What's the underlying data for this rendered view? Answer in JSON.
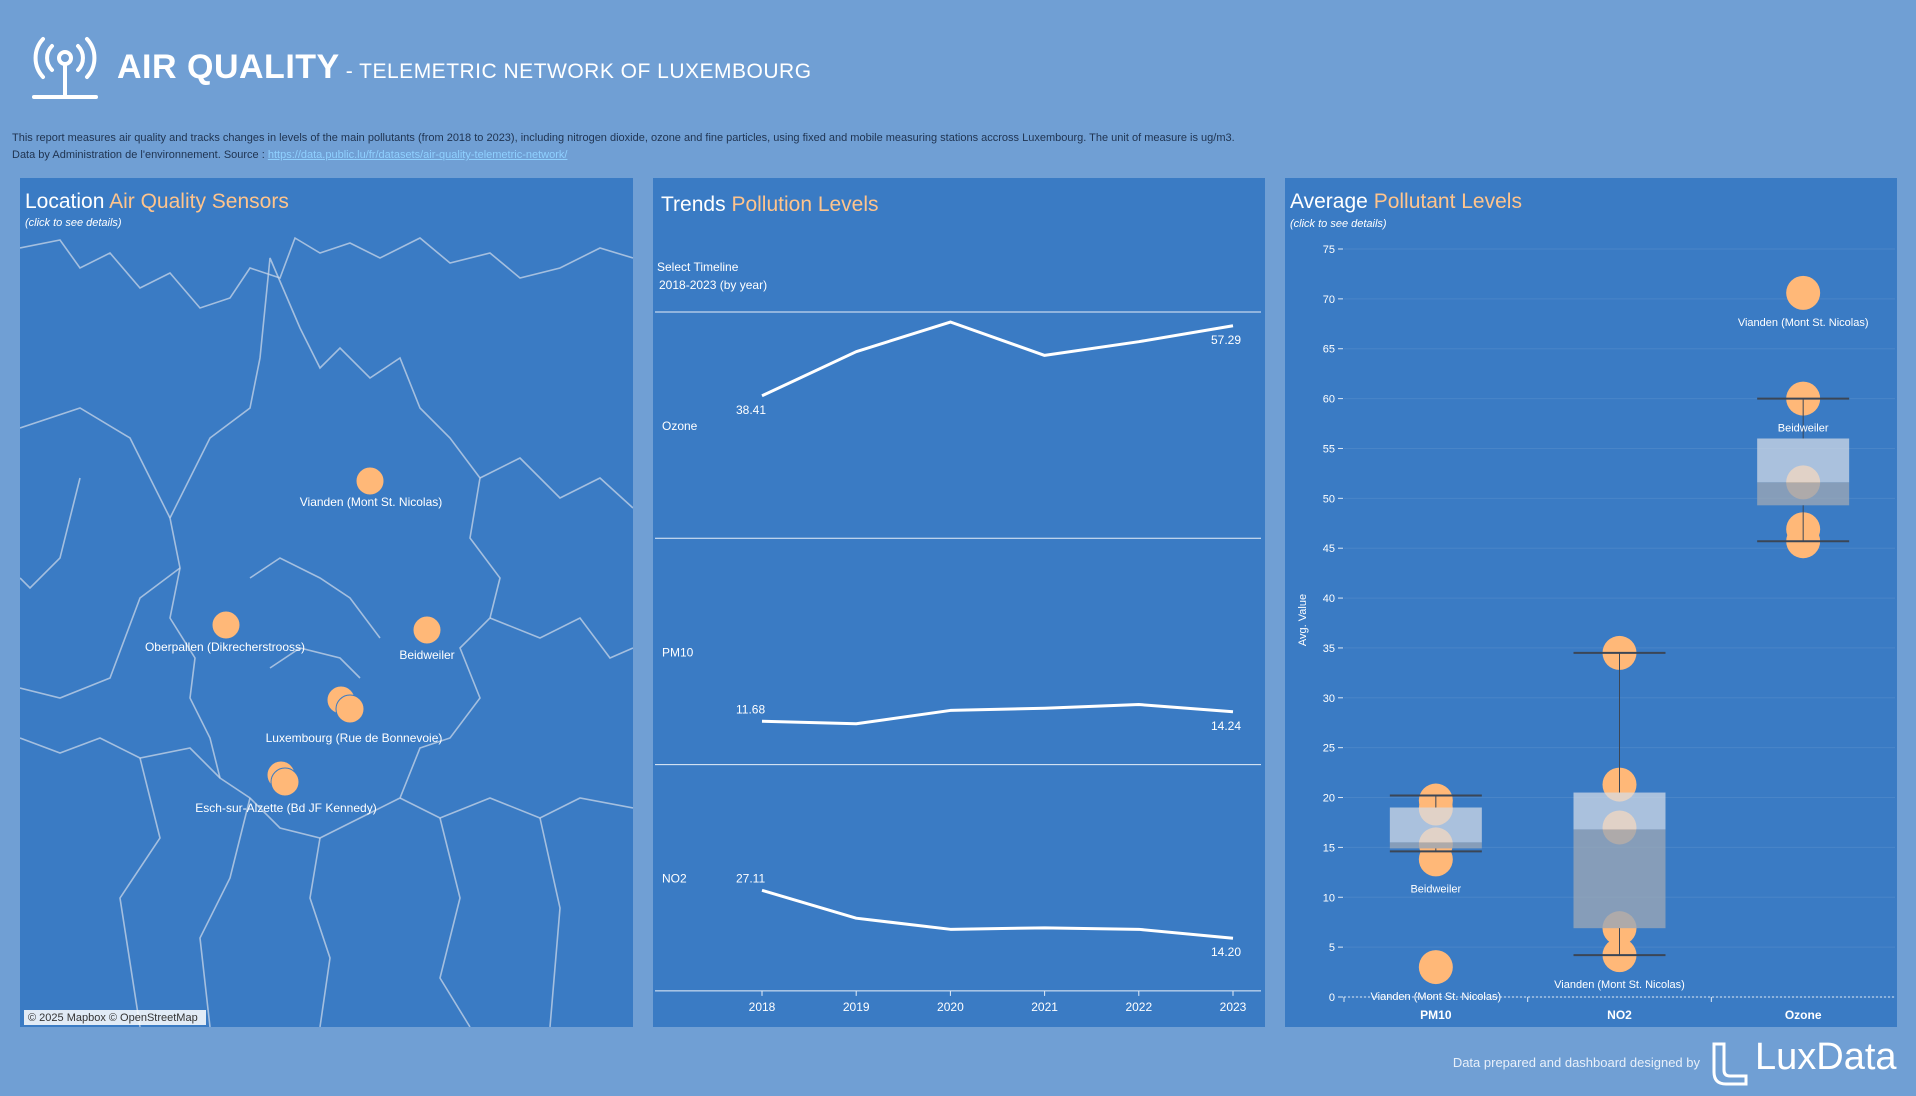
{
  "header": {
    "title": "AIR QUALITY",
    "subtitle": "- TELEMETRIC NETWORK OF LUXEMBOURG",
    "description": "This report  measures air quality and tracks changes in levels of the main pollutants (from 2018 to 2023), including nitrogen dioxide, ozone and fine particles, using fixed and mobile measuring stations accross Luxembourg. The unit of measure is ug/m3.",
    "source_prefix": "Data by Administration de l'environnement. Source :",
    "source_link": "https://data.public.lu/fr/datasets/air-quality-telemetric-network/"
  },
  "map": {
    "title": "Location",
    "title_highlight": "Air Quality Sensors",
    "note": "(click to see details)",
    "stations": [
      "Vianden (Mont St. Nicolas)",
      "Oberpallen (Dikrecherstrooss)",
      "Beidweiler",
      "Luxembourg (Rue de Bonnevoie)",
      "Esch-sur-Alzette (Bd JF Kennedy)"
    ],
    "attribution": "© 2025 Mapbox © OpenStreetMap"
  },
  "chart_data": [
    {
      "type": "line",
      "title": "Trends",
      "title_highlight": "Pollution Levels",
      "control_label": "Select Timeline",
      "control_value": "2018-2023 (by year)",
      "categories": [
        "2018",
        "2019",
        "2020",
        "2021",
        "2022",
        "2023"
      ],
      "ylim": [
        0,
        61
      ],
      "color": "#ffffff",
      "series": [
        {
          "name": "Ozone",
          "values": [
            38.41,
            50.3,
            58.3,
            49.3,
            53.0,
            57.29
          ],
          "value_labels": [
            "38.41",
            null,
            null,
            null,
            null,
            "57.29"
          ]
        },
        {
          "name": "PM10",
          "values": [
            11.68,
            11.0,
            14.6,
            15.2,
            16.2,
            14.24
          ],
          "value_labels": [
            "11.68",
            null,
            null,
            null,
            null,
            "14.24"
          ]
        },
        {
          "name": "NO2",
          "values": [
            27.11,
            19.6,
            16.6,
            17.0,
            16.6,
            14.2
          ],
          "value_labels": [
            "27.11",
            null,
            null,
            null,
            null,
            "14.20"
          ]
        }
      ]
    },
    {
      "type": "box",
      "title": "Average",
      "title_highlight": "Pollutant Levels",
      "note": "(click to see details)",
      "ylabel": "Avg. Value",
      "categories": [
        "PM10",
        "NO2",
        "Ozone"
      ],
      "ylim": [
        0,
        75
      ],
      "yticks": [
        0,
        5,
        10,
        15,
        20,
        25,
        30,
        35,
        40,
        45,
        50,
        55,
        60,
        65,
        70,
        75
      ],
      "grid": true,
      "point_color": "#ffb878",
      "boxes": [
        {
          "low": 14.6,
          "q1": 14.9,
          "median": 15.5,
          "q3": 19.0,
          "high": 20.2
        },
        {
          "low": 4.2,
          "q1": 6.9,
          "median": 16.8,
          "q3": 20.5,
          "high": 34.5
        },
        {
          "low": 45.7,
          "q1": 49.3,
          "median": 51.6,
          "q3": 56.0,
          "high": 60.0
        }
      ],
      "series": [
        {
          "name": "Vianden (Mont St. Nicolas)",
          "values": [
            3.0,
            4.2,
            70.6
          ],
          "labeled": [
            true,
            true,
            true
          ]
        },
        {
          "name": "Oberpallen (Dikrecherstrooss)",
          "values": [
            19.7,
            34.5,
            51.6
          ],
          "labeled": [
            false,
            false,
            false
          ]
        },
        {
          "name": "Beidweiler",
          "values": [
            13.8,
            6.9,
            60.0
          ],
          "labeled": [
            true,
            false,
            true
          ]
        },
        {
          "name": "Luxembourg (Rue de Bonnevoie)",
          "values": [
            18.9,
            21.3,
            46.9
          ],
          "labeled": [
            false,
            false,
            false
          ]
        },
        {
          "name": "Esch-sur-Alzette (Bd JF Kennedy)",
          "values": [
            15.3,
            17.0,
            45.7
          ],
          "labeled": [
            false,
            false,
            false
          ]
        }
      ]
    }
  ],
  "footer": {
    "credit": "Data prepared and dashboard designed by",
    "brand": "LuxData"
  }
}
